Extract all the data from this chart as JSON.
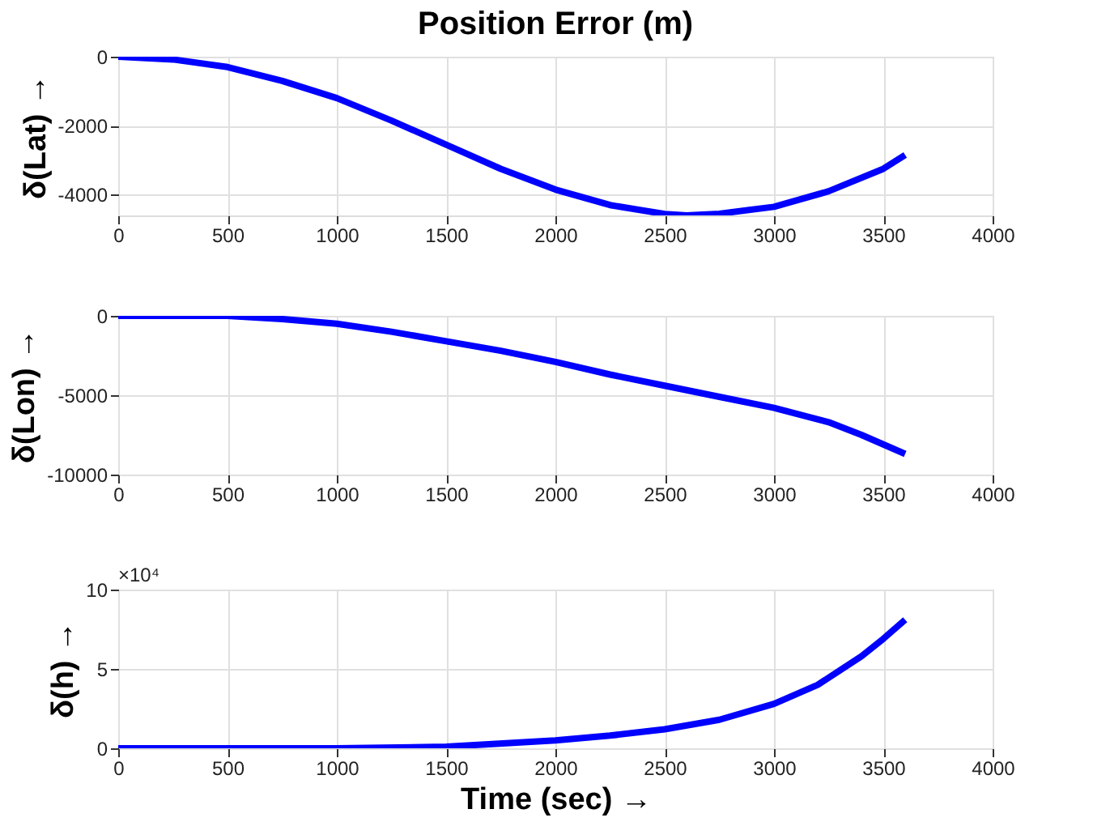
{
  "chart_data": [
    {
      "type": "line",
      "title": "Position Error (m)",
      "ylabel": "δ(Lat)  →",
      "x": [
        0,
        250,
        500,
        750,
        1000,
        1250,
        1500,
        1750,
        2000,
        2250,
        2500,
        2600,
        2750,
        3000,
        3250,
        3500,
        3600
      ],
      "series": [
        {
          "color": "#0000ff",
          "values": [
            0,
            -80,
            -300,
            -700,
            -1200,
            -1850,
            -2550,
            -3250,
            -3850,
            -4300,
            -4560,
            -4600,
            -4550,
            -4350,
            -3900,
            -3250,
            -2850
          ]
        }
      ],
      "xlim": [
        0,
        4000
      ],
      "xticks": [
        0,
        500,
        1000,
        1500,
        2000,
        2500,
        3000,
        3500,
        4000
      ],
      "ylim": [
        -4600,
        0
      ],
      "yticks": [
        -4000,
        -2000,
        0
      ],
      "grid": true,
      "line_style": "solid"
    },
    {
      "type": "line",
      "ylabel": "δ(Lon) →",
      "x": [
        0,
        500,
        750,
        1000,
        1250,
        1500,
        1750,
        2000,
        2250,
        2500,
        2750,
        3000,
        3250,
        3400,
        3500,
        3600
      ],
      "series": [
        {
          "color": "#0000ff",
          "values": [
            0,
            0,
            -200,
            -500,
            -1000,
            -1600,
            -2200,
            -2900,
            -3700,
            -4400,
            -5100,
            -5800,
            -6700,
            -7500,
            -8100,
            -8700
          ]
        }
      ],
      "xlim": [
        0,
        4000
      ],
      "xticks": [
        0,
        500,
        1000,
        1500,
        2000,
        2500,
        3000,
        3500,
        4000
      ],
      "ylim": [
        -10000,
        0
      ],
      "yticks": [
        -10000,
        -5000,
        0
      ],
      "grid": true,
      "line_style": "solid"
    },
    {
      "type": "line",
      "ylabel": "δ(h)  →",
      "xlabel": "Time (sec) →",
      "annotations": [
        "×10⁴"
      ],
      "x": [
        0,
        500,
        1000,
        1500,
        2000,
        2250,
        2500,
        2750,
        3000,
        3200,
        3400,
        3500,
        3600
      ],
      "series": [
        {
          "color": "#0000ff",
          "values": [
            0,
            0,
            0,
            0.1,
            0.5,
            0.8,
            1.2,
            1.8,
            2.8,
            4,
            5.8,
            6.9,
            8.1
          ]
        }
      ],
      "xlim": [
        0,
        4000
      ],
      "xticks": [
        0,
        500,
        1000,
        1500,
        2000,
        2500,
        3000,
        3500,
        4000
      ],
      "ylim": [
        0,
        10
      ],
      "yticks": [
        0,
        5,
        10
      ],
      "grid": true,
      "line_style": "solid"
    }
  ]
}
